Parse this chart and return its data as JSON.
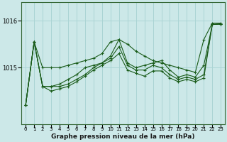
{
  "title": "Graphe pression niveau de la mer (hPa)",
  "background_color": "#cce8e8",
  "grid_color": "#aad4d4",
  "line_color": "#1a5c1a",
  "marker_color": "#1a5c1a",
  "x_ticks": [
    0,
    1,
    2,
    3,
    4,
    5,
    6,
    7,
    8,
    9,
    10,
    11,
    12,
    13,
    14,
    15,
    16,
    17,
    18,
    19,
    20,
    21,
    22,
    23
  ],
  "ylim": [
    1013.8,
    1016.4
  ],
  "yticks": [
    1015,
    1016
  ],
  "series": [
    [
      1014.2,
      1015.55,
      1015.0,
      1015.0,
      1015.0,
      1015.05,
      1015.1,
      1015.15,
      1015.2,
      1015.3,
      1015.55,
      1015.6,
      1015.5,
      1015.35,
      1015.25,
      1015.15,
      1015.1,
      1015.05,
      1015.0,
      1014.95,
      1014.9,
      1015.6,
      1015.95,
      1015.95
    ],
    [
      1014.2,
      1015.55,
      1014.6,
      1014.6,
      1014.6,
      1014.65,
      1014.75,
      1014.85,
      1015.0,
      1015.1,
      1015.25,
      1015.6,
      1015.1,
      1015.0,
      1015.05,
      1015.1,
      1015.15,
      1014.95,
      1014.8,
      1014.85,
      1014.8,
      1015.05,
      1015.92,
      1015.93
    ],
    [
      1014.2,
      1015.55,
      1014.6,
      1014.6,
      1014.65,
      1014.75,
      1014.85,
      1015.0,
      1015.05,
      1015.1,
      1015.2,
      1015.45,
      1015.05,
      1014.95,
      1014.95,
      1015.05,
      1015.0,
      1014.85,
      1014.75,
      1014.8,
      1014.75,
      1014.85,
      1015.92,
      1015.93
    ],
    [
      1014.2,
      1015.55,
      1014.6,
      1014.5,
      1014.55,
      1014.6,
      1014.7,
      1014.82,
      1014.95,
      1015.05,
      1015.15,
      1015.3,
      1014.95,
      1014.88,
      1014.82,
      1014.93,
      1014.93,
      1014.78,
      1014.7,
      1014.75,
      1014.7,
      1014.78,
      1015.92,
      1015.93
    ]
  ]
}
